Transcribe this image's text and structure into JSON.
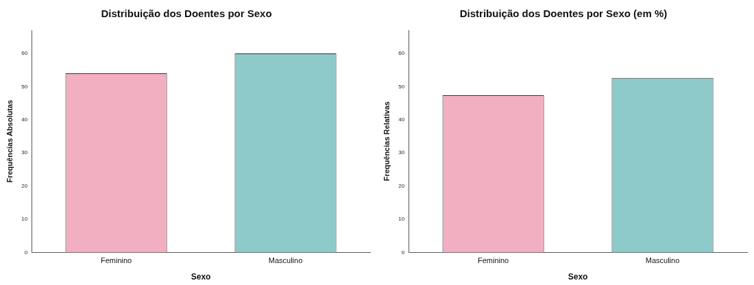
{
  "chart_data": [
    {
      "type": "bar",
      "title": "Distribuição dos Doentes por Sexo",
      "xlabel": "Sexo",
      "ylabel": "Frequências Absolutas",
      "categories": [
        "Feminino",
        "Masculino"
      ],
      "values": [
        54,
        60
      ],
      "colors": [
        "#f2afc1",
        "#8fcacb"
      ],
      "ylim": [
        0,
        67
      ],
      "yticks": [
        0,
        10,
        20,
        30,
        40,
        50,
        60
      ],
      "grid": false,
      "legend": false
    },
    {
      "type": "bar",
      "title": "Distribuição dos Doentes por Sexo (em %)",
      "xlabel": "Sexo",
      "ylabel": "Frequências Relativas",
      "categories": [
        "Feminino",
        "Masculino"
      ],
      "values": [
        47.4,
        52.6
      ],
      "colors": [
        "#f2afc1",
        "#8fcacb"
      ],
      "ylim": [
        0,
        67
      ],
      "yticks": [
        0,
        10,
        20,
        30,
        40,
        50,
        60
      ],
      "grid": false,
      "legend": false
    }
  ]
}
